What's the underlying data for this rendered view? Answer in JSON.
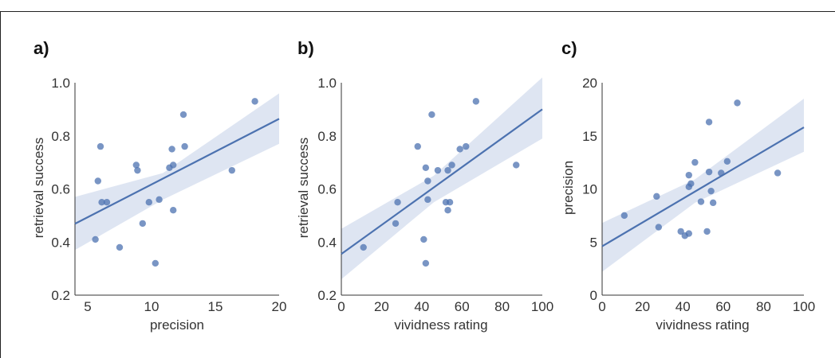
{
  "accent_color": "#4c72b0",
  "band_color": "#c8d3ea",
  "chart_data": [
    {
      "panel": "a)",
      "type": "scatter",
      "xlabel": "precision",
      "ylabel": "retrieval success",
      "xlim": [
        4,
        20
      ],
      "ylim": [
        0.2,
        1.0
      ],
      "xticks": [
        5,
        10,
        15,
        20
      ],
      "yticks": [
        0.2,
        0.4,
        0.6,
        0.8,
        1.0
      ],
      "xtick_labels": [
        "5",
        "10",
        "15",
        "20"
      ],
      "ytick_labels": [
        "0.2",
        "0.4",
        "0.6",
        "0.8",
        "1.0"
      ],
      "points": [
        [
          5.6,
          0.41
        ],
        [
          5.8,
          0.63
        ],
        [
          6.0,
          0.76
        ],
        [
          6.1,
          0.55
        ],
        [
          6.5,
          0.55
        ],
        [
          7.5,
          0.38
        ],
        [
          8.8,
          0.69
        ],
        [
          8.9,
          0.67
        ],
        [
          9.3,
          0.47
        ],
        [
          9.8,
          0.55
        ],
        [
          10.3,
          0.32
        ],
        [
          10.6,
          0.56
        ],
        [
          11.4,
          0.68
        ],
        [
          11.6,
          0.75
        ],
        [
          11.7,
          0.52
        ],
        [
          11.7,
          0.69
        ],
        [
          12.5,
          0.88
        ],
        [
          12.6,
          0.76
        ],
        [
          16.3,
          0.67
        ],
        [
          18.1,
          0.93
        ]
      ],
      "fit": {
        "intercept": 0.37,
        "slope": 0.0247
      },
      "ci": [
        {
          "x": 4,
          "lo": 0.37,
          "hi": 0.57
        },
        {
          "x": 10.9,
          "lo": 0.56,
          "hi": 0.66
        },
        {
          "x": 20,
          "lo": 0.77,
          "hi": 0.96
        }
      ]
    },
    {
      "panel": "b)",
      "type": "scatter",
      "xlabel": "vividness rating",
      "ylabel": "retrieval success",
      "xlim": [
        0,
        100
      ],
      "ylim": [
        0.2,
        1.0
      ],
      "xticks": [
        0,
        20,
        40,
        60,
        80,
        100
      ],
      "yticks": [
        0.2,
        0.4,
        0.6,
        0.8,
        1.0
      ],
      "xtick_labels": [
        "0",
        "20",
        "40",
        "60",
        "80",
        "100"
      ],
      "ytick_labels": [
        "0.2",
        "0.4",
        "0.6",
        "0.8",
        "1.0"
      ],
      "points": [
        [
          11,
          0.38
        ],
        [
          27,
          0.47
        ],
        [
          28,
          0.55
        ],
        [
          38,
          0.76
        ],
        [
          41,
          0.41
        ],
        [
          42,
          0.32
        ],
        [
          42,
          0.68
        ],
        [
          43,
          0.56
        ],
        [
          43,
          0.63
        ],
        [
          45,
          0.88
        ],
        [
          48,
          0.67
        ],
        [
          52,
          0.55
        ],
        [
          53,
          0.52
        ],
        [
          53,
          0.67
        ],
        [
          54,
          0.55
        ],
        [
          55,
          0.69
        ],
        [
          59,
          0.75
        ],
        [
          62,
          0.76
        ],
        [
          67,
          0.93
        ],
        [
          87,
          0.69
        ]
      ],
      "fit": {
        "intercept": 0.355,
        "slope": 0.00545
      },
      "ci": [
        {
          "x": 0,
          "lo": 0.26,
          "hi": 0.45
        },
        {
          "x": 46,
          "lo": 0.55,
          "hi": 0.65
        },
        {
          "x": 100,
          "lo": 0.79,
          "hi": 1.02
        }
      ]
    },
    {
      "panel": "c)",
      "type": "scatter",
      "xlabel": "vividness rating",
      "ylabel": "precision",
      "xlim": [
        0,
        100
      ],
      "ylim": [
        0,
        20
      ],
      "xticks": [
        0,
        20,
        40,
        60,
        80,
        100
      ],
      "yticks": [
        0,
        5,
        10,
        15,
        20
      ],
      "xtick_labels": [
        "0",
        "20",
        "40",
        "60",
        "80",
        "100"
      ],
      "ytick_labels": [
        "0",
        "5",
        "10",
        "15",
        "20"
      ],
      "points": [
        [
          11,
          7.5
        ],
        [
          27,
          9.3
        ],
        [
          28,
          6.4
        ],
        [
          39,
          6.0
        ],
        [
          41,
          5.6
        ],
        [
          43,
          5.8
        ],
        [
          43,
          10.2
        ],
        [
          43,
          11.3
        ],
        [
          44,
          10.5
        ],
        [
          46,
          12.5
        ],
        [
          49,
          8.8
        ],
        [
          52,
          6.0
        ],
        [
          53,
          11.6
        ],
        [
          53,
          16.3
        ],
        [
          54,
          9.8
        ],
        [
          55,
          8.7
        ],
        [
          59,
          11.5
        ],
        [
          62,
          12.6
        ],
        [
          67,
          18.1
        ],
        [
          87,
          11.5
        ]
      ],
      "fit": {
        "intercept": 4.6,
        "slope": 0.112
      },
      "ci": [
        {
          "x": 0,
          "lo": 2.2,
          "hi": 6.8
        },
        {
          "x": 46,
          "lo": 8.7,
          "hi": 10.9
        },
        {
          "x": 100,
          "lo": 13.5,
          "hi": 18.5
        }
      ]
    }
  ]
}
